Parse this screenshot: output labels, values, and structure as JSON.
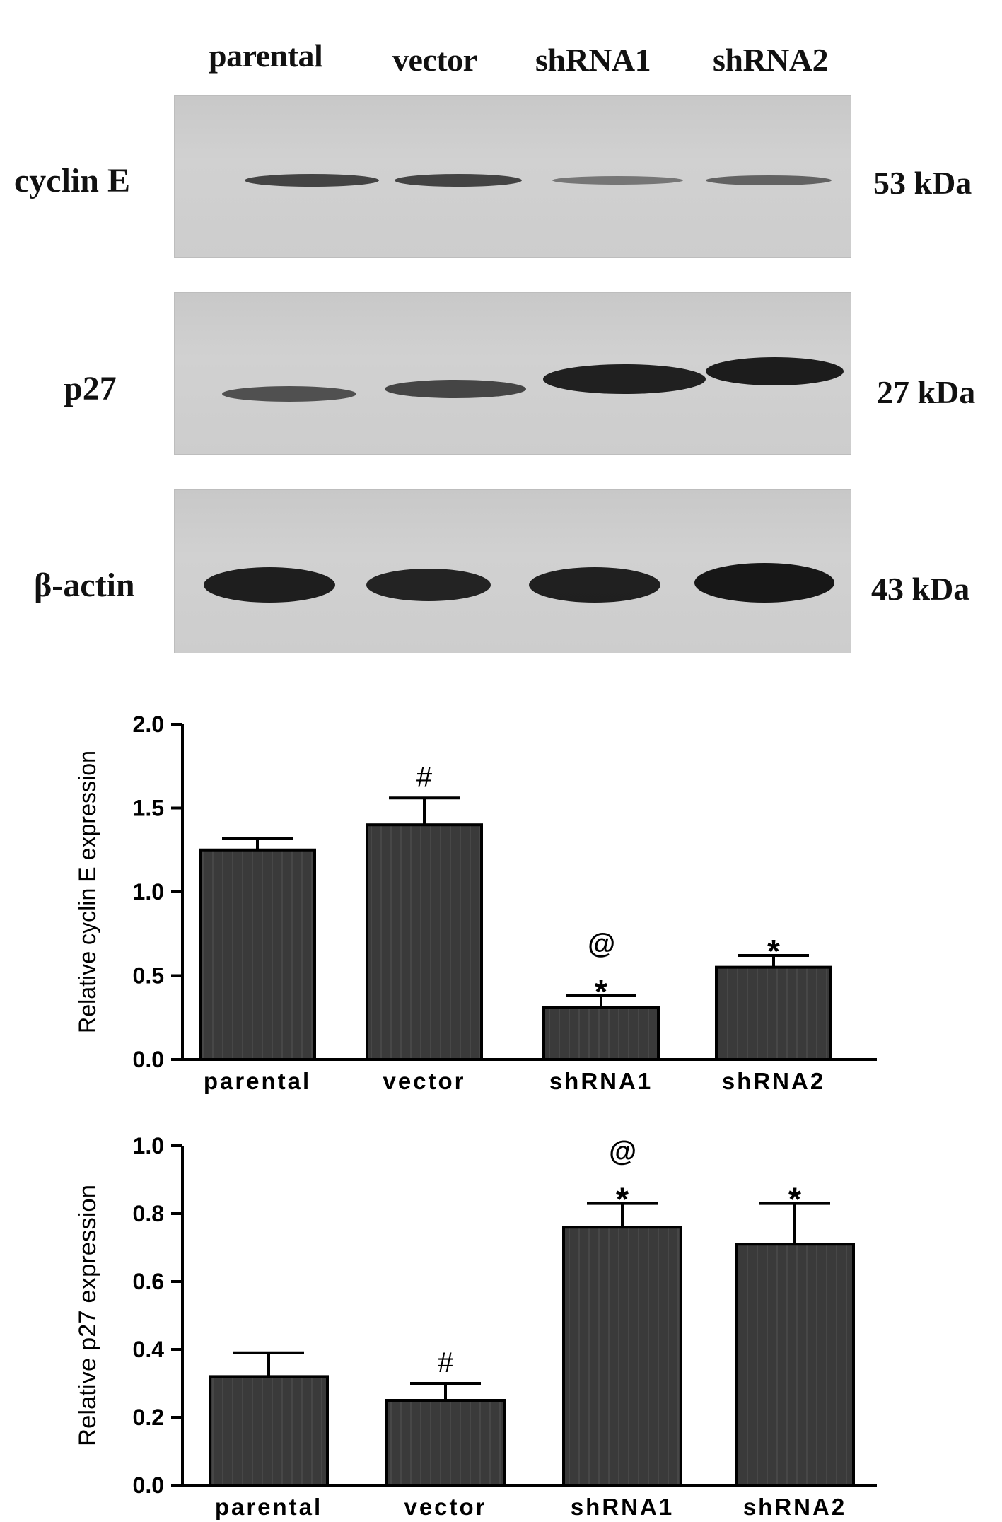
{
  "blot": {
    "lanes": [
      "parental",
      "vector",
      "shRNA1",
      "shRNA2"
    ],
    "rows": [
      {
        "label": "cyclin E",
        "size": "53 kDa",
        "intensity": [
          0.78,
          0.8,
          0.42,
          0.5
        ]
      },
      {
        "label": "p27",
        "size": "27 kDa",
        "intensity": [
          0.55,
          0.62,
          0.95,
          0.98
        ]
      },
      {
        "label": "β-actin",
        "size": "43 kDa",
        "intensity": [
          0.98,
          0.95,
          0.96,
          0.98
        ]
      }
    ]
  },
  "chart_data": [
    {
      "type": "bar",
      "categories": [
        "parental",
        "vector",
        "shRNA1",
        "shRNA2"
      ],
      "values": [
        1.25,
        1.4,
        0.31,
        0.55
      ],
      "errors": [
        0.07,
        0.16,
        0.07,
        0.07
      ],
      "annotations": [
        [],
        [
          "#"
        ],
        [
          "*",
          "@"
        ],
        [
          "*"
        ]
      ],
      "ylabel": "Relative cyclin E expression",
      "ylim": [
        0,
        2.0
      ],
      "yticks": [
        "0.0",
        "0.5",
        "1.0",
        "1.5",
        "2.0"
      ],
      "bar_color": "#3a3a3a"
    },
    {
      "type": "bar",
      "categories": [
        "parental",
        "vector",
        "shRNA1",
        "shRNA2"
      ],
      "values": [
        0.32,
        0.25,
        0.76,
        0.71
      ],
      "errors": [
        0.07,
        0.05,
        0.07,
        0.12
      ],
      "annotations": [
        [],
        [
          "#"
        ],
        [
          "*",
          "@"
        ],
        [
          "*"
        ]
      ],
      "ylabel": "Relative p27 expression",
      "ylim": [
        0,
        1.0
      ],
      "yticks": [
        "0.0",
        "0.2",
        "0.4",
        "0.6",
        "0.8",
        "1.0"
      ],
      "bar_color": "#3a3a3a"
    }
  ]
}
